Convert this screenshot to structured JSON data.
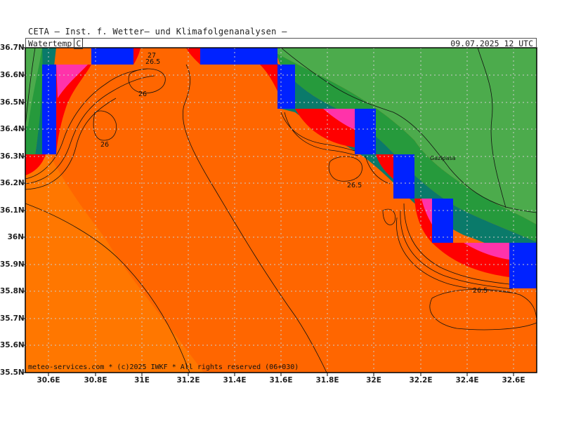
{
  "header": {
    "title": "CETA – Inst. f. Wetter– und Klimafolgenanalysen –"
  },
  "infobar": {
    "parameter": "Watertemp",
    "unit": "C",
    "valid_time": "09.07.2025  12  UTC"
  },
  "footer": {
    "credit": "meteo-services.com * (c)2025 IWKF * All rights reserved (06+030)"
  },
  "map": {
    "place_label": "Gazipasa",
    "contour_labels": [
      "27",
      "26.5",
      "26",
      "26",
      "26.5",
      "26.5"
    ],
    "lat_labels": [
      "36.7N",
      "36.6N",
      "36.5N",
      "36.4N",
      "36.3N",
      "36.2N",
      "36.1N",
      "36N",
      "35.9N",
      "35.8N",
      "35.7N",
      "35.6N",
      "35.5N"
    ],
    "lon_labels": [
      "30.6E",
      "30.8E",
      "31E",
      "31.2E",
      "31.4E",
      "31.6E",
      "31.8E",
      "32E",
      "32.2E",
      "32.4E",
      "32.6E"
    ],
    "colors": {
      "sea_base": "#ff6600",
      "sea_warm": "#ff7a00",
      "land_light": "#4cab4c",
      "land_dark": "#269a3c",
      "coast_teal": "#0a7a6a",
      "blue_cell": "#0022ff",
      "red_hot": "#ff0000",
      "pink_hot": "#ff33aa",
      "grid": "#cccccc"
    }
  }
}
